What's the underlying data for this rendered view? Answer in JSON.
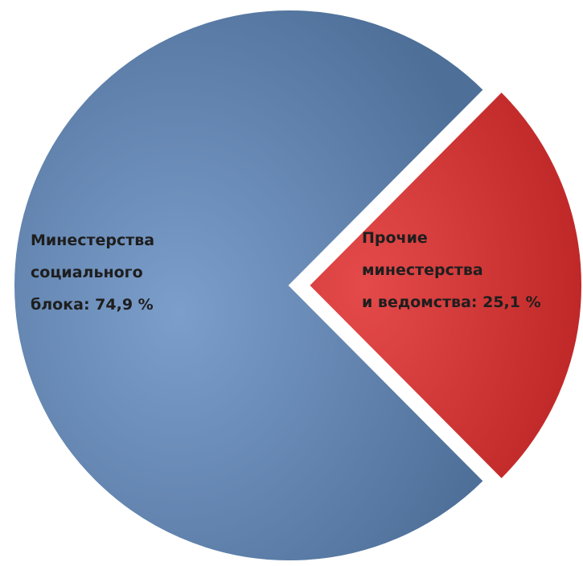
{
  "chart_data": {
    "type": "pie",
    "values": [
      74.9,
      25.1
    ],
    "value_labels": [
      "Минестерства\nсоциального\nблока: 74,9 %",
      "Прочие\nминестерства\nи ведомства: 25,1 %"
    ],
    "colors": [
      "#56799f",
      "#d43232"
    ],
    "exploded": [
      false,
      true
    ]
  }
}
